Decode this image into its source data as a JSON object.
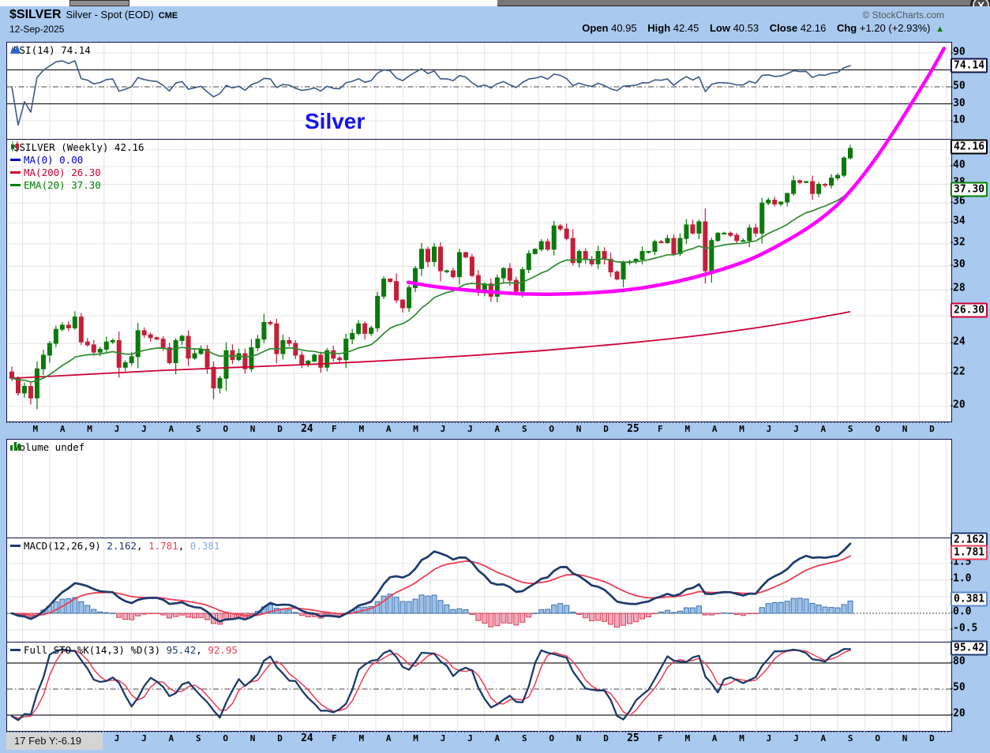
{
  "window": {
    "close_label": "X"
  },
  "header": {
    "symbol": "$SILVER",
    "name": "Silver - Spot (EOD)",
    "exchange": "CME",
    "credit": "© StockCharts.com",
    "date": "12-Sep-2025",
    "open_label": "Open",
    "open": "40.95",
    "high_label": "High",
    "high": "42.45",
    "low_label": "Low",
    "low": "40.53",
    "close_label": "Close",
    "close": "42.16",
    "chg_label": "Chg",
    "chg": "+1.20 (+2.93%)",
    "up_arrow": "▲"
  },
  "rsi_panel": {
    "legend": "RSI(14) 74.14",
    "ticks": [
      "90",
      "50",
      "30",
      "10"
    ],
    "tags": [
      {
        "text": "74.14",
        "value": 74.14,
        "color": "#12124a"
      }
    ]
  },
  "price_panel": {
    "legend_main": "$SILVER (Weekly) 42.16",
    "legend_ma0": "MA(0) 0.00",
    "legend_ma200": "MA(200) 26.30",
    "legend_ema20": "EMA(20) 37.30",
    "annotation": "Silver",
    "ticks": [
      "40",
      "38",
      "36",
      "34",
      "32",
      "30",
      "28",
      "24",
      "22",
      "20"
    ],
    "tags": [
      {
        "text": "42.16",
        "value": 42.16,
        "color": "#000000"
      },
      {
        "text": "37.30",
        "value": 37.3,
        "color": "#008000"
      },
      {
        "text": "26.30",
        "value": 26.3,
        "color": "#CC0033"
      }
    ]
  },
  "volume_panel": {
    "legend": "Volume undef"
  },
  "macd_panel": {
    "legend_name": "MACD(12,26,9)",
    "v1": "2.162",
    "v2": "1.781",
    "v3": "0.381",
    "sep": ", ",
    "ticks": [
      "1.5",
      "1.0",
      "0.0",
      "-0.5"
    ],
    "tags": [
      {
        "text": "2.162",
        "value": 2.162,
        "color": "#1D3A6D"
      },
      {
        "text": "1.781",
        "value": 1.781,
        "color": "#EE3D52"
      },
      {
        "text": "0.381",
        "value": 0.381,
        "color": "#5588CC"
      }
    ]
  },
  "sto_panel": {
    "legend_name": "Full STO %K(14,3) %D(3)",
    "v1": "95.42",
    "v2": "92.95",
    "sep": ", ",
    "ticks": [
      "80",
      "50",
      "20"
    ],
    "tags": [
      {
        "text": "95.42",
        "value": 95.42,
        "color": "#1D3A6D"
      }
    ]
  },
  "footer": {
    "crosshair_readout": "17 Feb Y:-6.19"
  },
  "axis": {
    "months": [
      "M",
      "A",
      "M",
      "J",
      "J",
      "A",
      "S",
      "O",
      "N",
      "D",
      "24",
      "F",
      "M",
      "A",
      "M",
      "J",
      "J",
      "A",
      "S",
      "O",
      "N",
      "D",
      "25",
      "F",
      "M",
      "A",
      "M",
      "J",
      "J",
      "A",
      "S",
      "O",
      "N",
      "D"
    ]
  },
  "chart_data": {
    "type": "candlestick-multi-panel",
    "title": "Silver",
    "symbol": "$SILVER",
    "frequency": "weekly",
    "date_range": [
      "17-Feb-2023",
      "12-Sep-2025"
    ],
    "panels": [
      "RSI(14)",
      "Price+MA(200)+EMA(20)",
      "Volume (undef)",
      "MACD(12,26,9)",
      "Full STO %K(14,3) %D(3)"
    ],
    "price_scale": "log",
    "price_ylim": [
      19.5,
      43.5
    ],
    "rsi_ylim": [
      0,
      100
    ],
    "macd_ylim": [
      -0.95,
      2.25
    ],
    "sto_ylim": [
      0,
      100
    ],
    "last_values": {
      "close": 42.16,
      "rsi": 74.14,
      "ema20": 37.3,
      "ma200": 26.3,
      "macd": 2.162,
      "macd_signal": 1.781,
      "macd_hist": 0.381,
      "sto_k": 95.42,
      "sto_d": 92.95
    },
    "weekly_closes": [
      21.7,
      20.8,
      21.2,
      20.5,
      22.3,
      23.2,
      24.0,
      25.0,
      25.3,
      25.1,
      25.9,
      24.1,
      23.9,
      23.4,
      23.6,
      24.1,
      24.2,
      22.4,
      22.7,
      23.1,
      24.9,
      24.6,
      24.4,
      24.3,
      23.7,
      22.7,
      24.2,
      24.5,
      23.0,
      23.3,
      23.6,
      22.4,
      21.1,
      21.7,
      23.5,
      22.9,
      23.3,
      22.3,
      23.7,
      24.3,
      25.5,
      25.4,
      23.3,
      24.2,
      24.0,
      23.2,
      22.6,
      22.8,
      23.2,
      22.4,
      23.5,
      23.0,
      22.9,
      24.3,
      24.7,
      25.4,
      24.7,
      25.1,
      27.5,
      28.9,
      28.7,
      27.2,
      26.6,
      28.2,
      29.8,
      31.5,
      30.4,
      31.7,
      29.6,
      29.6,
      29.1,
      31.2,
      30.8,
      29.2,
      27.9,
      28.5,
      27.5,
      29.0,
      29.8,
      28.8,
      27.9,
      29.7,
      31.1,
      31.5,
      32.2,
      31.5,
      33.7,
      33.4,
      32.5,
      30.3,
      31.3,
      30.6,
      30.2,
      31.3,
      30.6,
      29.5,
      28.9,
      30.3,
      30.4,
      30.6,
      31.3,
      31.3,
      32.2,
      32.1,
      32.5,
      31.1,
      32.5,
      33.8,
      33.0,
      34.1,
      29.6,
      32.3,
      33.0,
      33.0,
      32.8,
      32.3,
      32.3,
      33.5,
      33.0,
      36.0,
      36.3,
      35.9,
      36.1,
      37.0,
      38.4,
      38.2,
      38.3,
      37.0,
      38.0,
      37.9,
      38.7,
      39.0,
      41.0,
      42.16
    ],
    "ma200_points": [
      [
        0,
        21.7
      ],
      [
        12,
        21.95
      ],
      [
        24,
        22.2
      ],
      [
        36,
        22.4
      ],
      [
        48,
        22.6
      ],
      [
        60,
        22.85
      ],
      [
        72,
        23.15
      ],
      [
        84,
        23.5
      ],
      [
        96,
        23.95
      ],
      [
        108,
        24.5
      ],
      [
        118,
        25.1
      ],
      [
        126,
        25.7
      ],
      [
        133,
        26.3
      ]
    ],
    "annotation_curve_points": [
      [
        63,
        28.5
      ],
      [
        68,
        28.1
      ],
      [
        74,
        27.8
      ],
      [
        82,
        27.55
      ],
      [
        90,
        27.6
      ],
      [
        98,
        27.9
      ],
      [
        105,
        28.5
      ],
      [
        111,
        29.3
      ],
      [
        117,
        30.4
      ],
      [
        122,
        31.8
      ],
      [
        127,
        33.6
      ],
      [
        131,
        35.6
      ],
      [
        134,
        37.8
      ],
      [
        137,
        40.6
      ],
      [
        140,
        44.0
      ],
      [
        143,
        48.0
      ],
      [
        146,
        52.5
      ],
      [
        148,
        56.0
      ]
    ],
    "colors": {
      "candle_up": "#0A7A0A",
      "candle_down": "#C41E3A",
      "ema20": "#2E8B2E",
      "ma200": "#CC0033",
      "annotation": "#FF00FF",
      "rsi": "#3D5A8A",
      "macd": "#1D3A6D",
      "macd_signal": "#EE3D52",
      "hist_pos_fill": "#9DC2EA",
      "hist_pos_edge": "#3A6EA8",
      "hist_neg_fill": "#F2A9BC",
      "hist_neg_edge": "#D84057",
      "sto_k": "#1D3A6D",
      "sto_d": "#EE3D52",
      "grid": "#E4E4E4"
    }
  }
}
